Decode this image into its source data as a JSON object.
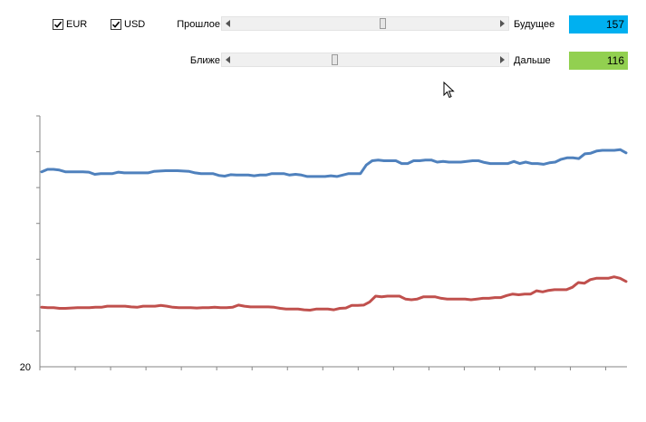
{
  "controls": {
    "checkboxes": [
      {
        "label": "EUR",
        "checked": true
      },
      {
        "label": "USD",
        "checked": true
      }
    ],
    "sliders": [
      {
        "left_label": "Прошлое",
        "right_label": "Будущее",
        "value": "157",
        "position": 0.57,
        "color": "#00b0f0"
      },
      {
        "left_label": "Ближе",
        "right_label": "Дальше",
        "value": "116",
        "position": 0.38,
        "color": "#92d050"
      }
    ]
  },
  "chart_data": {
    "type": "line",
    "y_tick_labels": [
      "20"
    ],
    "grid": false,
    "series": [
      {
        "color": "#4f81bd",
        "values": [
          74.4,
          75.1,
          75.1,
          74.9,
          74.4,
          74.4,
          74.4,
          74.4,
          74.3,
          73.7,
          73.9,
          73.9,
          73.9,
          74.3,
          74.1,
          74.1,
          74.1,
          74.1,
          74.1,
          74.5,
          74.6,
          74.7,
          74.7,
          74.7,
          74.6,
          74.5,
          74.1,
          73.9,
          73.9,
          73.9,
          73.4,
          73.2,
          73.6,
          73.5,
          73.5,
          73.5,
          73.3,
          73.5,
          73.5,
          73.9,
          73.9,
          73.9,
          73.5,
          73.7,
          73.5,
          73.1,
          73.1,
          73.1,
          73.1,
          73.3,
          73.1,
          73.5,
          73.9,
          73.9,
          73.9,
          76.3,
          77.5,
          77.7,
          77.5,
          77.5,
          77.5,
          76.7,
          76.7,
          77.5,
          77.5,
          77.7,
          77.7,
          77.1,
          77.3,
          77.1,
          77.1,
          77.1,
          77.3,
          77.5,
          77.5,
          77.0,
          76.7,
          76.7,
          76.7,
          76.7,
          77.3,
          76.7,
          77.1,
          76.7,
          76.7,
          76.5,
          76.9,
          77.1,
          77.9,
          78.3,
          78.3,
          78.1,
          79.4,
          79.6,
          80.2,
          80.4,
          80.4,
          80.4,
          80.6,
          79.7
        ]
      },
      {
        "color": "#c0504d",
        "values": [
          36.6,
          36.5,
          36.5,
          36.3,
          36.3,
          36.4,
          36.5,
          36.5,
          36.5,
          36.6,
          36.6,
          36.9,
          36.9,
          36.9,
          36.9,
          36.7,
          36.6,
          36.9,
          36.9,
          36.9,
          37.1,
          36.9,
          36.6,
          36.5,
          36.5,
          36.5,
          36.4,
          36.5,
          36.5,
          36.6,
          36.5,
          36.5,
          36.6,
          37.2,
          36.9,
          36.7,
          36.7,
          36.7,
          36.7,
          36.6,
          36.3,
          36.1,
          36.1,
          36.1,
          35.9,
          35.8,
          36.1,
          36.1,
          36.1,
          35.9,
          36.3,
          36.4,
          37.1,
          37.1,
          37.2,
          38.1,
          39.7,
          39.5,
          39.7,
          39.7,
          39.7,
          38.9,
          38.7,
          38.9,
          39.5,
          39.5,
          39.5,
          39.1,
          38.9,
          38.9,
          38.9,
          38.9,
          38.7,
          38.9,
          39.1,
          39.1,
          39.3,
          39.3,
          39.9,
          40.3,
          40.1,
          40.3,
          40.3,
          41.2,
          40.9,
          41.3,
          41.5,
          41.5,
          41.5,
          42.2,
          43.5,
          43.3,
          44.3,
          44.7,
          44.7,
          44.7,
          45.1,
          44.7,
          43.8
        ]
      }
    ]
  }
}
